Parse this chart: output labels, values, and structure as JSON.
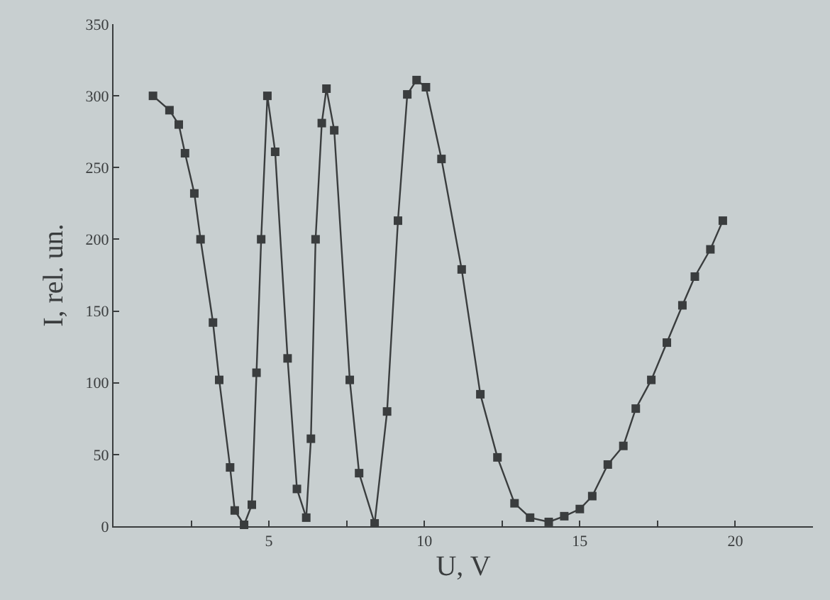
{
  "chart_data": {
    "type": "line",
    "xlabel": "U, V",
    "ylabel": "I, rel. un.",
    "x": [
      1.27,
      1.8,
      2.1,
      2.3,
      2.6,
      2.8,
      3.2,
      3.4,
      3.75,
      3.9,
      4.2,
      4.45,
      4.6,
      4.75,
      4.95,
      5.2,
      5.6,
      5.9,
      6.2,
      6.35,
      6.5,
      6.7,
      6.85,
      7.1,
      7.6,
      7.9,
      8.4,
      8.8,
      9.15,
      9.45,
      9.75,
      10.05,
      10.55,
      11.2,
      11.8,
      12.35,
      12.9,
      13.4,
      14.0,
      14.5,
      15.0,
      15.4,
      15.9,
      16.4,
      16.8,
      17.3,
      17.8,
      18.3,
      18.7,
      19.2,
      19.6
    ],
    "series": [
      {
        "color": "#3a3d3e",
        "values": [
          300,
          290,
          280,
          260,
          232,
          200,
          142,
          102,
          41,
          11,
          1,
          15,
          107,
          200,
          300,
          261,
          117,
          26,
          6,
          61,
          200,
          281,
          305,
          276,
          102,
          37,
          2,
          80,
          213,
          301,
          311,
          306,
          256,
          179,
          92,
          48,
          16,
          6,
          3,
          7,
          12,
          21,
          43,
          56,
          82,
          102,
          128,
          154,
          174,
          193,
          213
        ]
      }
    ],
    "xlim": [
      0,
      22.5
    ],
    "xticks": [
      {
        "value": 2.5,
        "label": null
      },
      5,
      {
        "value": 7.5,
        "label": null
      },
      10,
      {
        "value": 12.5,
        "label": null
      },
      15,
      {
        "value": 17.5,
        "label": null
      },
      20
    ],
    "ylim": [
      0,
      350
    ],
    "yticks": [
      0,
      50,
      100,
      150,
      200,
      250,
      300,
      350
    ],
    "grid": false,
    "marker": "square",
    "line_style": "solid"
  }
}
